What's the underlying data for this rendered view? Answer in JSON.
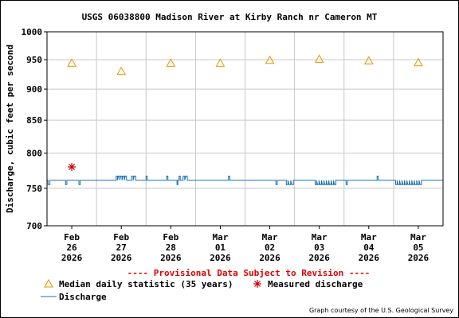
{
  "chart_data": {
    "type": "line",
    "title": "USGS 06038800 Madison River at Kirby Ranch nr Cameron MT",
    "ylabel": "Discharge, cubic feet per second",
    "xlabel": "",
    "ylim": [
      700,
      1000
    ],
    "y_scale": "log",
    "y_ticks": [
      700,
      750,
      800,
      850,
      900,
      950,
      1000
    ],
    "x_range": [
      "2026-02-25T12:00",
      "2026-03-05T12:00"
    ],
    "x_ticks": [
      {
        "date": "2026-02-26",
        "month": "Feb",
        "day": "26",
        "year": "2026"
      },
      {
        "date": "2026-02-27",
        "month": "Feb",
        "day": "27",
        "year": "2026"
      },
      {
        "date": "2026-02-28",
        "month": "Feb",
        "day": "28",
        "year": "2026"
      },
      {
        "date": "2026-03-01",
        "month": "Mar",
        "day": "01",
        "year": "2026"
      },
      {
        "date": "2026-03-02",
        "month": "Mar",
        "day": "02",
        "year": "2026"
      },
      {
        "date": "2026-03-03",
        "month": "Mar",
        "day": "03",
        "year": "2026"
      },
      {
        "date": "2026-03-04",
        "month": "Mar",
        "day": "04",
        "year": "2026"
      },
      {
        "date": "2026-03-05",
        "month": "Mar",
        "day": "05",
        "year": "2026"
      }
    ],
    "grid": true,
    "banner": "---- Provisional Data Subject to Revision ----",
    "series": [
      {
        "name": "Median daily statistic (35 years)",
        "marker": "triangle",
        "color": "#e69500",
        "points": [
          {
            "x": "2026-02-26",
            "y": 944
          },
          {
            "x": "2026-02-27",
            "y": 930
          },
          {
            "x": "2026-02-28",
            "y": 944
          },
          {
            "x": "2026-03-01",
            "y": 944
          },
          {
            "x": "2026-03-02",
            "y": 949
          },
          {
            "x": "2026-03-03",
            "y": 951
          },
          {
            "x": "2026-03-04",
            "y": 948
          },
          {
            "x": "2026-03-05",
            "y": 945
          }
        ]
      },
      {
        "name": "Measured discharge",
        "marker": "asterisk",
        "color": "#cc0000",
        "points": [
          {
            "x": "2026-02-26",
            "y": 780
          }
        ]
      },
      {
        "name": "Discharge",
        "marker": "line",
        "color": "#1a6fb0",
        "base": 761,
        "excursions": [
          {
            "from": "2026-02-25T12:30",
            "to": "2026-02-25T14:00",
            "y": 755
          },
          {
            "from": "2026-02-25T21:00",
            "to": "2026-02-25T22:00",
            "y": 755
          },
          {
            "from": "2026-02-26T03:30",
            "to": "2026-02-26T04:30",
            "y": 755
          },
          {
            "from": "2026-02-26T21:30",
            "to": "2026-02-27T03:00",
            "y": 767
          },
          {
            "from": "2026-02-27T05:00",
            "to": "2026-02-27T07:30",
            "y": 767
          },
          {
            "from": "2026-02-27T12:00",
            "to": "2026-02-27T13:00",
            "y": 767
          },
          {
            "from": "2026-02-27T22:00",
            "to": "2026-02-27T23:00",
            "y": 767
          },
          {
            "from": "2026-02-28T04:00",
            "to": "2026-02-28T05:00",
            "y": 767
          },
          {
            "from": "2026-02-28T06:00",
            "to": "2026-02-28T08:30",
            "y": 767
          },
          {
            "from": "2026-02-28T03:00",
            "to": "2026-02-28T03:45",
            "y": 755
          },
          {
            "from": "2026-03-01T04:00",
            "to": "2026-03-01T05:00",
            "y": 767
          },
          {
            "from": "2026-03-02T03:00",
            "to": "2026-03-02T04:00",
            "y": 755
          },
          {
            "from": "2026-03-02T08:00",
            "to": "2026-03-02T12:00",
            "y": 755
          },
          {
            "from": "2026-03-02T22:00",
            "to": "2026-03-03T08:30",
            "y": 755
          },
          {
            "from": "2026-03-03T13:00",
            "to": "2026-03-03T14:00",
            "y": 755
          },
          {
            "from": "2026-03-04T04:00",
            "to": "2026-03-04T05:00",
            "y": 767
          },
          {
            "from": "2026-03-04T13:00",
            "to": "2026-03-05T02:00",
            "y": 755
          }
        ]
      }
    ],
    "legend": {
      "items": [
        {
          "label": "Median daily statistic (35 years)",
          "marker": "triangle"
        },
        {
          "label": "Measured discharge",
          "marker": "asterisk"
        },
        {
          "label": "Discharge",
          "marker": "line"
        }
      ]
    },
    "credit": "Graph courtesy of the U.S. Geological Survey"
  }
}
